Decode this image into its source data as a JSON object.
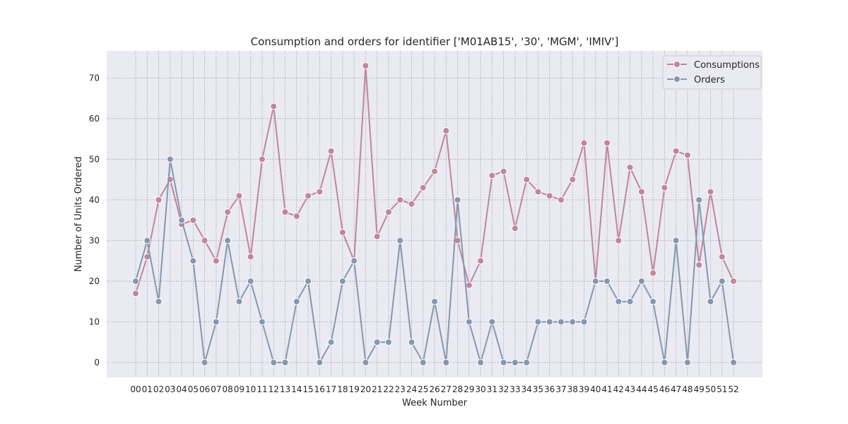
{
  "chart_data": {
    "type": "line",
    "title": "Consumption and orders for identifier ['M01AB15', '30', 'MGM', 'IMIV']",
    "xlabel": "Week Number",
    "ylabel": "Number of Units Ordered",
    "ylim": [
      -3.65,
      76.65
    ],
    "yticks": [
      0,
      10,
      20,
      30,
      40,
      50,
      60,
      70
    ],
    "grid": true,
    "legend_position": "top-right",
    "categories": [
      "00",
      "01",
      "02",
      "03",
      "04",
      "05",
      "06",
      "07",
      "08",
      "09",
      "10",
      "11",
      "12",
      "13",
      "14",
      "15",
      "16",
      "17",
      "18",
      "19",
      "20",
      "21",
      "22",
      "23",
      "24",
      "25",
      "26",
      "27",
      "28",
      "29",
      "30",
      "31",
      "32",
      "33",
      "34",
      "35",
      "36",
      "37",
      "38",
      "39",
      "40",
      "41",
      "42",
      "43",
      "44",
      "45",
      "46",
      "47",
      "48",
      "49",
      "50",
      "51",
      "52"
    ],
    "series": [
      {
        "name": "Consumptions",
        "color": "#c0869e",
        "values": [
          17,
          26,
          40,
          45,
          34,
          35,
          30,
          25,
          37,
          41,
          26,
          50,
          63,
          37,
          36,
          41,
          42,
          52,
          32,
          25,
          73,
          31,
          37,
          40,
          39,
          43,
          47,
          57,
          30,
          19,
          25,
          46,
          47,
          33,
          45,
          42,
          41,
          40,
          45,
          54,
          20,
          54,
          30,
          48,
          42,
          22,
          43,
          52,
          51,
          24,
          42,
          26,
          20
        ]
      },
      {
        "name": "Orders",
        "color": "#8797ae",
        "values": [
          20,
          30,
          15,
          50,
          35,
          25,
          0,
          10,
          30,
          15,
          20,
          10,
          0,
          0,
          15,
          20,
          0,
          5,
          20,
          25,
          0,
          5,
          5,
          30,
          5,
          0,
          15,
          0,
          40,
          10,
          0,
          10,
          0,
          0,
          0,
          10,
          10,
          10,
          10,
          10,
          20,
          20,
          15,
          15,
          20,
          15,
          0,
          30,
          0,
          40,
          15,
          20,
          0
        ]
      }
    ]
  }
}
